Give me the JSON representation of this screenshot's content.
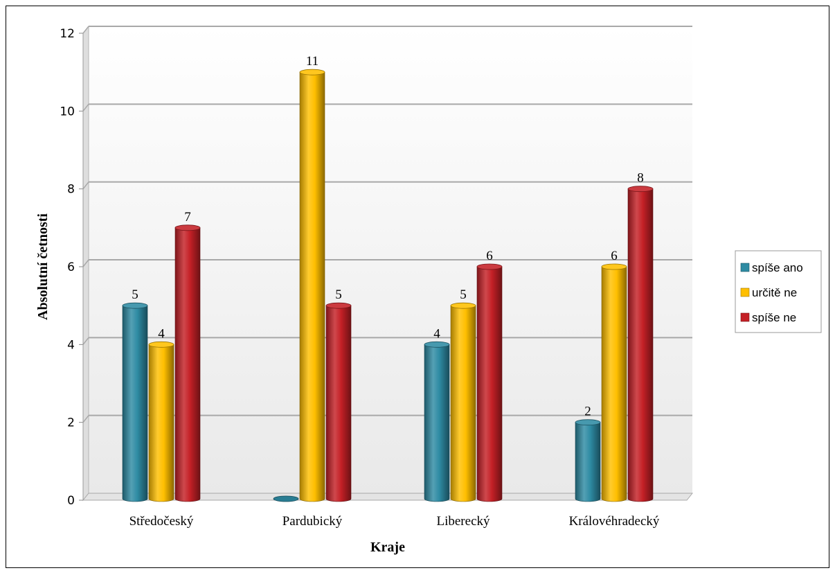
{
  "chart_data": {
    "type": "bar",
    "categories": [
      "Středočeský",
      "Pardubický",
      "Liberecký",
      "Královéhradecký"
    ],
    "series": [
      {
        "name": "spíše ano",
        "values": [
          5,
          0,
          4,
          2
        ],
        "color": "#2E8BA3"
      },
      {
        "name": "určitě ne",
        "values": [
          4,
          11,
          5,
          6
        ],
        "color": "#FFBF00"
      },
      {
        "name": "spíše ne",
        "values": [
          7,
          5,
          6,
          8
        ],
        "color": "#C42026"
      }
    ],
    "data_labels": [
      [
        "5",
        "",
        "4",
        "2"
      ],
      [
        "4",
        "11",
        "5",
        "6"
      ],
      [
        "7",
        "5",
        "6",
        "8"
      ]
    ],
    "xlabel": "Kraje",
    "ylabel": "Absolutní četnosti",
    "ylim": [
      0,
      12
    ],
    "yticks": [
      0,
      2,
      4,
      6,
      8,
      10,
      12
    ],
    "ytick_labels": [
      "0",
      "2",
      "4",
      "6",
      "8",
      "10",
      "12"
    ],
    "grid": true,
    "legend_position": "right",
    "style": "3d-cylinder"
  }
}
